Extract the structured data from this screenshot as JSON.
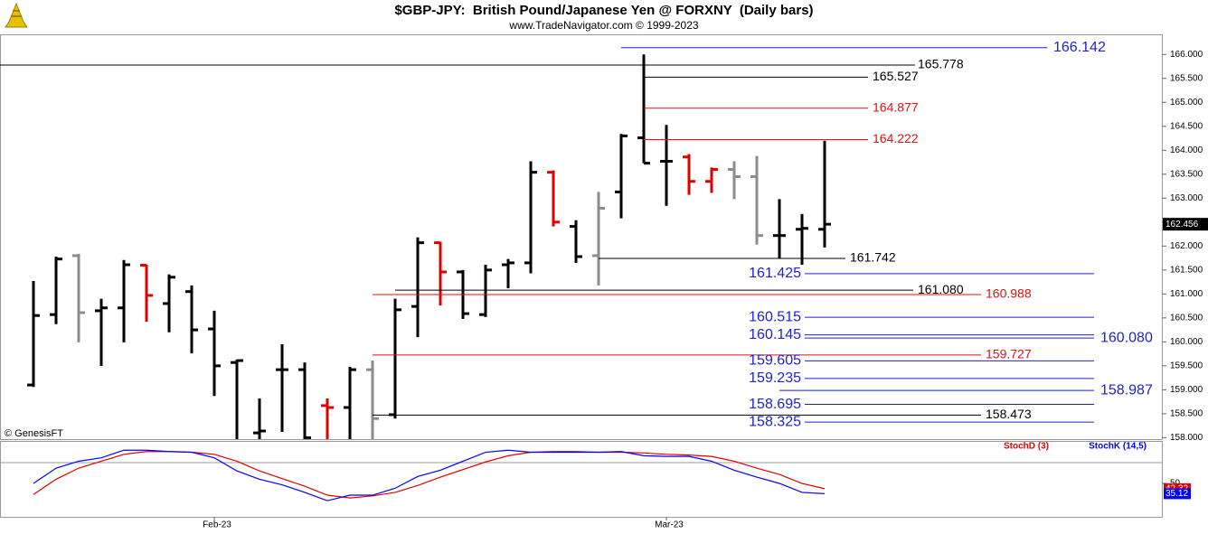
{
  "chart_data": [
    {
      "type": "ohlc",
      "title": "$GBP-JPY:  British Pound/Japanese Yen @ FORXNY  (Daily bars)",
      "subtitle": "www.TradeNavigator.com © 1999-2023",
      "watermark": "© GenesisFT",
      "categories": [
        null,
        null,
        null,
        null,
        null,
        null,
        null,
        null,
        "Feb-23",
        null,
        null,
        null,
        null,
        null,
        null,
        null,
        null,
        null,
        null,
        null,
        null,
        null,
        null,
        null,
        null,
        null,
        null,
        null,
        "Mar-23",
        null,
        null,
        null,
        null,
        null,
        null,
        null
      ],
      "open": [
        159.1,
        160.57,
        161.8,
        160.65,
        160.71,
        161.6,
        160.8,
        161.05,
        160.27,
        159.57,
        158.1,
        159.42,
        159.42,
        158.67,
        158.63,
        159.42,
        158.48,
        160.74,
        162.07,
        161.46,
        160.57,
        161.61,
        161.65,
        163.54,
        162.41,
        161.8,
        163.13,
        164.26,
        163.77,
        163.86,
        163.35,
        163.6,
        163.45,
        162.22,
        162.35,
        162.35
      ],
      "high": [
        161.27,
        161.78,
        161.84,
        160.9,
        161.71,
        161.61,
        161.41,
        161.18,
        160.65,
        159.63,
        158.82,
        159.95,
        159.57,
        158.82,
        159.48,
        159.61,
        160.9,
        162.18,
        162.09,
        161.5,
        161.61,
        161.73,
        163.77,
        163.58,
        162.54,
        163.13,
        164.34,
        166.0,
        164.53,
        163.92,
        163.64,
        163.77,
        163.88,
        162.98,
        162.67,
        164.2
      ],
      "low": [
        159.06,
        160.37,
        159.99,
        159.5,
        159.99,
        160.42,
        160.2,
        159.76,
        158.87,
        157.97,
        157.97,
        158.12,
        157.97,
        157.97,
        157.97,
        157.97,
        158.4,
        160.1,
        160.76,
        160.48,
        160.52,
        161.12,
        161.43,
        162.41,
        161.65,
        161.18,
        162.58,
        163.73,
        162.84,
        163.07,
        163.11,
        162.98,
        162.03,
        161.75,
        161.61,
        161.97
      ],
      "close": [
        160.55,
        161.73,
        160.61,
        160.71,
        161.61,
        160.97,
        161.35,
        160.25,
        159.5,
        159.61,
        158.14,
        159.42,
        158.0,
        158.63,
        159.42,
        158.4,
        160.67,
        162.07,
        161.46,
        160.59,
        161.5,
        161.65,
        163.54,
        162.5,
        161.78,
        162.79,
        164.3,
        163.73,
        163.77,
        163.35,
        163.6,
        163.45,
        162.22,
        162.22,
        162.37,
        162.456
      ],
      "colors": [
        "#000000",
        "#000000",
        "#8c8c8c",
        "#000000",
        "#000000",
        "#e00000",
        "#000000",
        "#000000",
        "#000000",
        "#000000",
        "#000000",
        "#000000",
        "#000000",
        "#e00000",
        "#000000",
        "#8c8c8c",
        "#000000",
        "#000000",
        "#e00000",
        "#000000",
        "#000000",
        "#000000",
        "#000000",
        "#e00000",
        "#000000",
        "#8c8c8c",
        "#000000",
        "#000000",
        "#000000",
        "#e00000",
        "#e00000",
        "#8c8c8c",
        "#8c8c8c",
        "#000000",
        "#000000",
        "#000000"
      ],
      "ylim": [
        157.97,
        166.42
      ],
      "yticks": [
        {
          "value": 158,
          "label": "158.000"
        },
        {
          "value": 158.5,
          "label": "158.500"
        },
        {
          "value": 159,
          "label": "159.000"
        },
        {
          "value": 159.5,
          "label": "159.500"
        },
        {
          "value": 160,
          "label": "160.000"
        },
        {
          "value": 160.5,
          "label": "160.500"
        },
        {
          "value": 161,
          "label": "161.000"
        },
        {
          "value": 161.5,
          "label": "161.500"
        },
        {
          "value": 162,
          "label": "162.000"
        },
        {
          "value": 162.5,
          "label": "162.500"
        },
        {
          "value": 163,
          "label": "163.000"
        },
        {
          "value": 163.5,
          "label": "163.500"
        },
        {
          "value": 164,
          "label": "164.000"
        },
        {
          "value": 164.5,
          "label": "164.500"
        },
        {
          "value": 165,
          "label": "165.000"
        },
        {
          "value": 165.5,
          "label": "165.500"
        },
        {
          "value": 166,
          "label": "166.000"
        }
      ],
      "levels": [
        {
          "value": 166.142,
          "label": "166.142",
          "color": "#1f1fd0"
        },
        {
          "value": 165.778,
          "label": "165.778",
          "color": "#000000"
        },
        {
          "value": 165.527,
          "label": "165.527",
          "color": "#000000"
        },
        {
          "value": 164.877,
          "label": "164.877",
          "color": "#e01010"
        },
        {
          "value": 164.222,
          "label": "164.222",
          "color": "#e01010"
        },
        {
          "value": 161.742,
          "label": "161.742",
          "color": "#000000"
        },
        {
          "value": 161.425,
          "label": "161.425",
          "color": "#1f1fd0"
        },
        {
          "value": 161.08,
          "label": "161.080",
          "color": "#000000"
        },
        {
          "value": 160.988,
          "label": "160.988",
          "color": "#e01010"
        },
        {
          "value": 160.515,
          "label": "160.515",
          "color": "#1f1fd0"
        },
        {
          "value": 160.145,
          "label": "160.145",
          "color": "#1f1fd0"
        },
        {
          "value": 160.08,
          "label": "160.080",
          "color": "#1f1fd0"
        },
        {
          "value": 159.727,
          "label": "159.727",
          "color": "#e01010"
        },
        {
          "value": 159.605,
          "label": "159.605",
          "color": "#1f1fd0"
        },
        {
          "value": 159.235,
          "label": "159.235",
          "color": "#1f1fd0"
        },
        {
          "value": 158.987,
          "label": "158.987",
          "color": "#1f1fd0"
        },
        {
          "value": 158.695,
          "label": "158.695",
          "color": "#1f1fd0"
        },
        {
          "value": 158.473,
          "label": "158.473",
          "color": "#000000"
        },
        {
          "value": 158.325,
          "label": "158.325",
          "color": "#1f1fd0"
        }
      ]
    },
    {
      "type": "line",
      "series": [
        {
          "name": "StochD (3)",
          "color": "#e00000",
          "values": [
            34,
            56,
            72,
            82,
            92,
            96,
            96,
            95,
            92,
            82,
            68,
            57,
            46,
            33,
            29,
            32,
            37,
            47,
            59,
            70,
            81,
            90,
            95,
            96,
            96,
            95,
            95,
            94,
            92,
            91,
            89,
            82,
            72,
            63,
            50,
            42.32
          ]
        },
        {
          "name": "StochK (14,5)",
          "color": "#0000ff",
          "values": [
            50,
            72,
            82,
            87,
            98,
            98,
            96,
            95,
            87,
            68,
            56,
            48,
            37,
            25,
            33,
            33,
            43,
            60,
            69,
            82,
            95,
            98,
            95,
            95,
            95,
            95,
            96,
            90,
            89,
            89,
            82,
            69,
            59,
            50,
            37,
            35.12
          ]
        }
      ],
      "ylim": [
        0,
        100
      ],
      "yticks": [
        50
      ]
    }
  ]
}
